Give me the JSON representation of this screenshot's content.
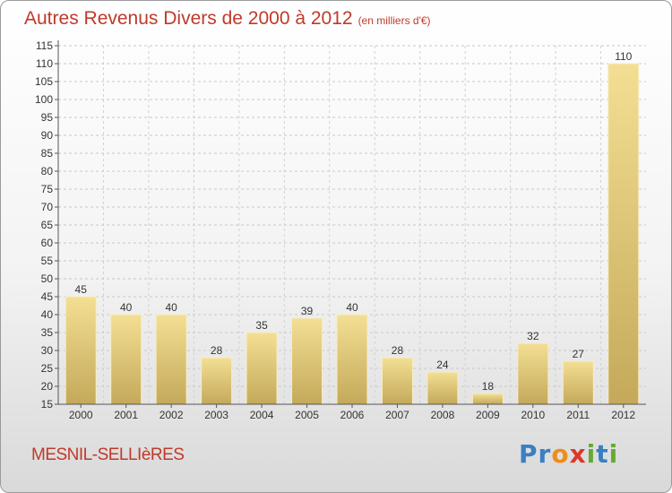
{
  "title": "Autres Revenus Divers de 2000 à 2012",
  "subtitle": "(en milliers d'€)",
  "commune": "MESNIL-SELLIèRES",
  "brand": {
    "letters": [
      "P",
      "r",
      "o",
      "x",
      "i",
      "t",
      "i"
    ],
    "colors": [
      "#3a7fc1",
      "#3a7fc1",
      "#f08c1a",
      "#d93a2a",
      "#66aa33",
      "#3a7fc1",
      "#66aa33"
    ]
  },
  "colors": {
    "bar_light": "#f3df94",
    "bar_dark": "#c4a95a",
    "title": "#c0392b"
  },
  "chart_data": {
    "type": "bar",
    "categories": [
      "2000",
      "2001",
      "2002",
      "2003",
      "2004",
      "2005",
      "2006",
      "2007",
      "2008",
      "2009",
      "2010",
      "2011",
      "2012"
    ],
    "values": [
      45,
      40,
      40,
      28,
      35,
      39,
      40,
      28,
      24,
      18,
      32,
      27,
      110
    ],
    "ylim": [
      15,
      115
    ],
    "yticks": [
      15,
      20,
      25,
      30,
      35,
      40,
      45,
      50,
      55,
      60,
      65,
      70,
      75,
      80,
      85,
      90,
      95,
      100,
      105,
      110,
      115
    ],
    "grid": true
  }
}
